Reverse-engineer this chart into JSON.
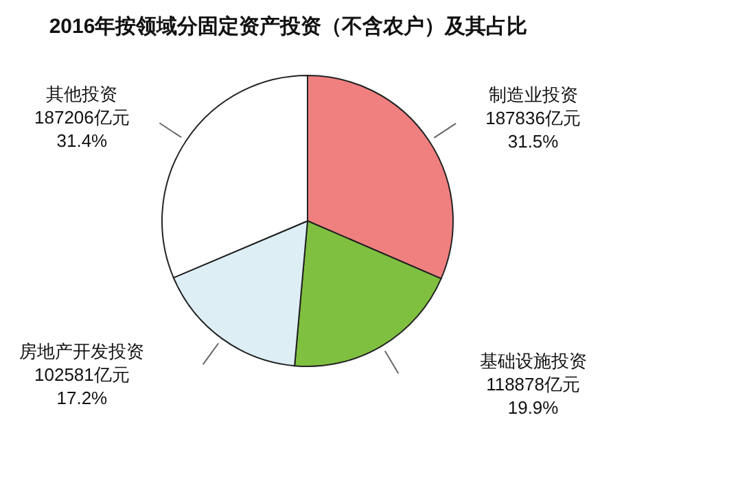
{
  "chart_data": {
    "type": "pie",
    "title": "2016年按领域分固定资产投资（不含农户）及其占比",
    "categories": [
      "制造业投资",
      "基础设施投资",
      "房地产开发投资",
      "其他投资"
    ],
    "values": [
      187836,
      118878,
      102581,
      187206
    ],
    "value_labels": [
      "187836亿元\n31.5%",
      "118878亿元\n19.9%",
      "102581亿元\n17.2%",
      "187206亿元\n31.4%"
    ],
    "colors": [
      "#f08080",
      "#80c040",
      "#ddeef5",
      "#ffffff"
    ]
  }
}
